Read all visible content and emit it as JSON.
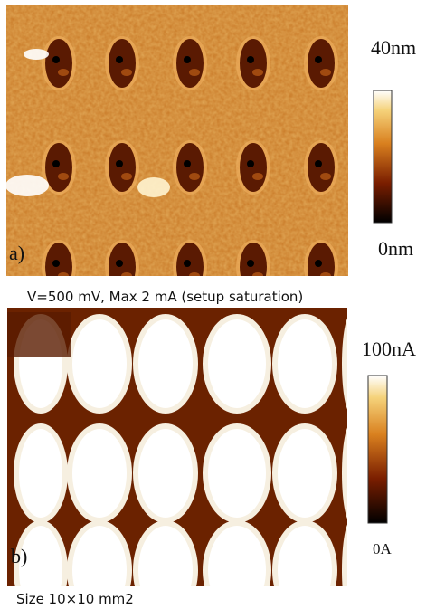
{
  "panels": [
    {
      "label": "a)",
      "scale_max": "40nm",
      "scale_min": "0nm",
      "caption": "V=500 mV, Max  2 mA (setup saturation)"
    },
    {
      "label": "b)",
      "scale_max": "100nA",
      "scale_min": "0A",
      "caption": "Size 10×10 mm2"
    }
  ]
}
